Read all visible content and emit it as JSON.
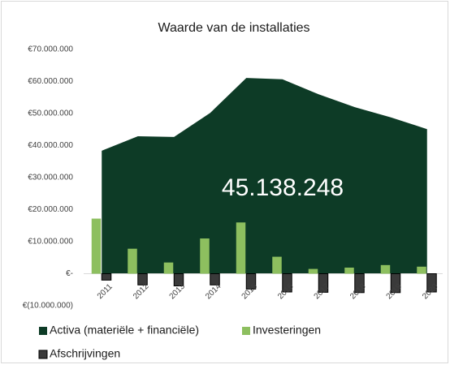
{
  "chart_data": {
    "type": "area_bar",
    "title": "Waarde van de installaties",
    "categories": [
      "2011",
      "2012",
      "2013",
      "2014",
      "2015",
      "2016",
      "2017",
      "2018",
      "2019",
      "2020"
    ],
    "series": [
      {
        "name": "Activa (materiële + financiële)",
        "kind": "area",
        "color": "#0d3b26",
        "values": [
          38400000,
          42900000,
          42700000,
          50200000,
          61100000,
          60700000,
          56000000,
          52000000,
          48800000,
          45138248
        ]
      },
      {
        "name": "Investeringen",
        "kind": "bar",
        "color": "#8dbf5f",
        "values": [
          17200000,
          7800000,
          3500000,
          11000000,
          16000000,
          5300000,
          1500000,
          1900000,
          2700000,
          2200000
        ]
      },
      {
        "name": "Afschrijvingen",
        "kind": "bar",
        "color": "#3a3a3a",
        "values": [
          -2000000,
          -3500000,
          -3800000,
          -3500000,
          -4800000,
          -5700000,
          -5800000,
          -5900000,
          -5900000,
          -5700000
        ]
      }
    ],
    "annotation": "45.138.248",
    "ylim": [
      -10000000,
      70000000
    ],
    "yticks": [
      {
        "value": -10000000,
        "label": "€(10.000.000)"
      },
      {
        "value": 0,
        "label": "€-"
      },
      {
        "value": 10000000,
        "label": "€10.000.000"
      },
      {
        "value": 20000000,
        "label": "€20.000.000"
      },
      {
        "value": 30000000,
        "label": "€30.000.000"
      },
      {
        "value": 40000000,
        "label": "€40.000.000"
      },
      {
        "value": 50000000,
        "label": "€50.000.000"
      },
      {
        "value": 60000000,
        "label": "€60.000.000"
      },
      {
        "value": 70000000,
        "label": "€70.000.000"
      }
    ],
    "grid": false,
    "legend": "bottom"
  }
}
